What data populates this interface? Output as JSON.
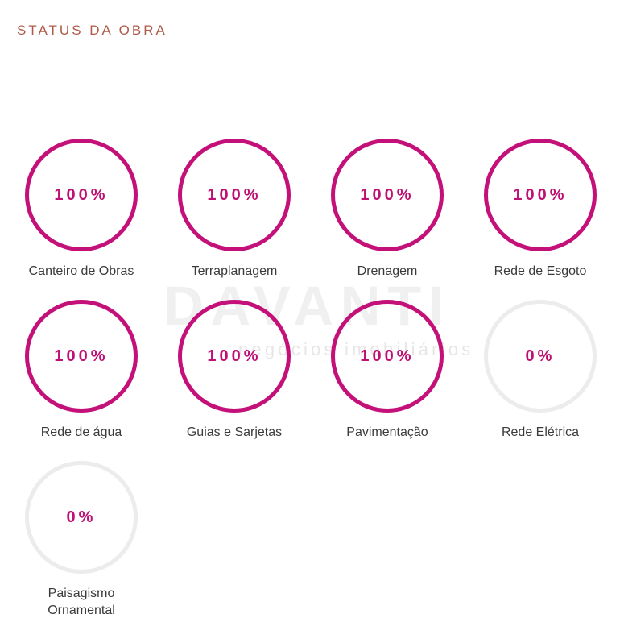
{
  "header": {
    "title": "STATUS DA OBRA"
  },
  "watermark": {
    "brand": "DAVANTI",
    "tagline": "negócios imobiliários"
  },
  "theme": {
    "title_color": "#ad5a49",
    "accent_color": "#c41179",
    "pending_ring_color": "#ececec",
    "label_color": "#3b3b3b"
  },
  "chart_data": {
    "type": "progress-circles",
    "title": "STATUS DA OBRA",
    "categories": [
      "Canteiro de Obras",
      "Terraplanagem",
      "Drenagem",
      "Rede de Esgoto",
      "Rede de água",
      "Guias e Sarjetas",
      "Pavimentação",
      "Rede Elétrica",
      "Paisagismo Ornamental"
    ],
    "values": [
      100,
      100,
      100,
      100,
      100,
      100,
      100,
      0,
      0
    ],
    "unit": "%"
  },
  "status_items": [
    {
      "label": "Canteiro de Obras",
      "value": "100%",
      "state": "done"
    },
    {
      "label": "Terraplanagem",
      "value": "100%",
      "state": "done"
    },
    {
      "label": "Drenagem",
      "value": "100%",
      "state": "done"
    },
    {
      "label": "Rede de Esgoto",
      "value": "100%",
      "state": "done"
    },
    {
      "label": "Rede de água",
      "value": "100%",
      "state": "done"
    },
    {
      "label": "Guias e Sarjetas",
      "value": "100%",
      "state": "done"
    },
    {
      "label": "Pavimentação",
      "value": "100%",
      "state": "done"
    },
    {
      "label": "Rede Elétrica",
      "value": "0%",
      "state": "pending"
    },
    {
      "label": "Paisagismo Ornamental",
      "value": "0%",
      "state": "pending"
    }
  ]
}
